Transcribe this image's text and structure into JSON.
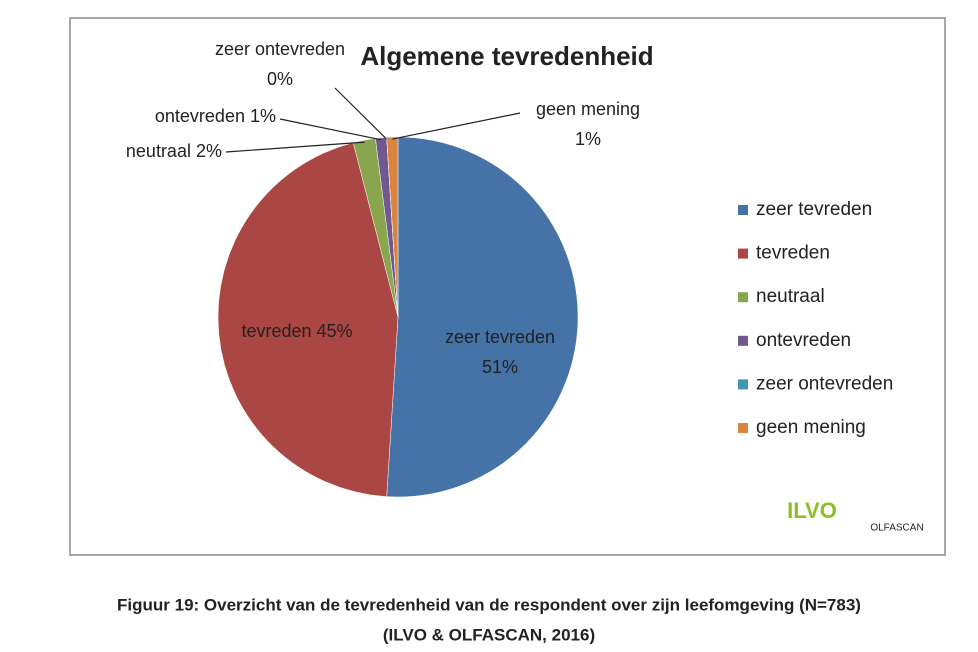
{
  "chart_data": {
    "type": "pie",
    "title": "Algemene tevredenheid",
    "categories": [
      "zeer tevreden",
      "tevreden",
      "neutraal",
      "ontevreden",
      "zeer ontevreden",
      "geen mening"
    ],
    "values": [
      51,
      45,
      2,
      1,
      0,
      1
    ],
    "value_labels": [
      "51%",
      "45%",
      "2%",
      "1%",
      "0%",
      "1%"
    ],
    "colors": [
      "#4572a7",
      "#aa4643",
      "#89a54e",
      "#71588f",
      "#4198af",
      "#db843d"
    ],
    "legend": "right"
  },
  "logos": [
    "ILVO",
    "OLFASCAN"
  ],
  "caption": [
    "Figuur 19: Overzicht van de tevredenheid van de respondent over zijn leefomgeving (N=783)",
    "(ILVO & OLFASCAN, 2016)"
  ]
}
